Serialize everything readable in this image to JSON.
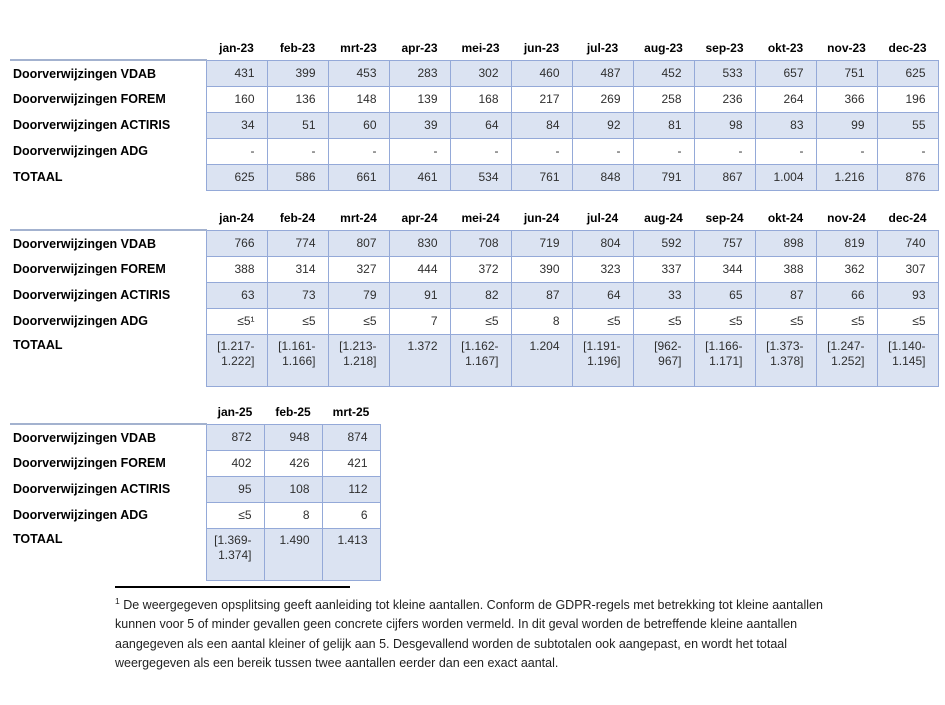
{
  "colors": {
    "cell_border": "#94a9d8",
    "shaded_row_fill": "#dbe3f2",
    "label_top_rule": "#a3b2cf",
    "footnote_rule": "#000000"
  },
  "tables": [
    {
      "name": "doorverwijzingen-2023",
      "label_col_width": 196,
      "data_col_width": 61,
      "columns": [
        "jan-23",
        "feb-23",
        "mrt-23",
        "apr-23",
        "mei-23",
        "jun-23",
        "jul-23",
        "aug-23",
        "sep-23",
        "okt-23",
        "nov-23",
        "dec-23"
      ],
      "rows": [
        {
          "label": "Doorverwijzingen VDAB",
          "shaded": true,
          "values": [
            "431",
            "399",
            "453",
            "283",
            "302",
            "460",
            "487",
            "452",
            "533",
            "657",
            "751",
            "625"
          ]
        },
        {
          "label": "Doorverwijzingen FOREM",
          "shaded": false,
          "values": [
            "160",
            "136",
            "148",
            "139",
            "168",
            "217",
            "269",
            "258",
            "236",
            "264",
            "366",
            "196"
          ]
        },
        {
          "label": "Doorverwijzingen ACTIRIS",
          "shaded": true,
          "values": [
            "34",
            "51",
            "60",
            "39",
            "64",
            "84",
            "92",
            "81",
            "98",
            "83",
            "99",
            "55"
          ]
        },
        {
          "label": "Doorverwijzingen ADG",
          "shaded": false,
          "values": [
            "-",
            "-",
            "-",
            "-",
            "-",
            "-",
            "-",
            "-",
            "-",
            "-",
            "-",
            "-"
          ]
        },
        {
          "label": "TOTAAL",
          "shaded": true,
          "values": [
            "625",
            "586",
            "661",
            "461",
            "534",
            "761",
            "848",
            "791",
            "867",
            "1.004",
            "1.216",
            "876"
          ]
        }
      ]
    },
    {
      "name": "doorverwijzingen-2024",
      "label_col_width": 196,
      "data_col_width": 61,
      "columns": [
        "jan-24",
        "feb-24",
        "mrt-24",
        "apr-24",
        "mei-24",
        "jun-24",
        "jul-24",
        "aug-24",
        "sep-24",
        "okt-24",
        "nov-24",
        "dec-24"
      ],
      "rows": [
        {
          "label": "Doorverwijzingen VDAB",
          "shaded": true,
          "values": [
            "766",
            "774",
            "807",
            "830",
            "708",
            "719",
            "804",
            "592",
            "757",
            "898",
            "819",
            "740"
          ]
        },
        {
          "label": "Doorverwijzingen FOREM",
          "shaded": false,
          "values": [
            "388",
            "314",
            "327",
            "444",
            "372",
            "390",
            "323",
            "337",
            "344",
            "388",
            "362",
            "307"
          ]
        },
        {
          "label": "Doorverwijzingen ACTIRIS",
          "shaded": true,
          "values": [
            "63",
            "73",
            "79",
            "91",
            "82",
            "87",
            "64",
            "33",
            "65",
            "87",
            "66",
            "93"
          ]
        },
        {
          "label": "Doorverwijzingen ADG",
          "shaded": false,
          "values": [
            "≤5¹",
            "≤5",
            "≤5",
            "7",
            "≤5",
            "8",
            "≤5",
            "≤5",
            "≤5",
            "≤5",
            "≤5",
            "≤5"
          ]
        },
        {
          "label": "TOTAAL",
          "shaded": true,
          "values": [
            "[1.217-\n1.222]",
            "[1.161-\n1.166]",
            "[1.213-\n1.218]",
            "1.372",
            "[1.162-\n1.167]",
            "1.204",
            "[1.191-\n1.196]",
            "[962-\n967]",
            "[1.166-\n1.171]",
            "[1.373-\n1.378]",
            "[1.247-\n1.252]",
            "[1.140-\n1.145]"
          ]
        }
      ]
    },
    {
      "name": "doorverwijzingen-2025",
      "label_col_width": 196,
      "data_col_width": 58,
      "columns": [
        "jan-25",
        "feb-25",
        "mrt-25"
      ],
      "rows": [
        {
          "label": "Doorverwijzingen VDAB",
          "shaded": true,
          "values": [
            "872",
            "948",
            "874"
          ]
        },
        {
          "label": "Doorverwijzingen FOREM",
          "shaded": false,
          "values": [
            "402",
            "426",
            "421"
          ]
        },
        {
          "label": "Doorverwijzingen ACTIRIS",
          "shaded": true,
          "values": [
            "95",
            "108",
            "112"
          ]
        },
        {
          "label": "Doorverwijzingen ADG",
          "shaded": false,
          "values": [
            "≤5",
            "8",
            "6"
          ]
        },
        {
          "label": "TOTAAL",
          "shaded": true,
          "values": [
            "[1.369-\n1.374]",
            "1.490",
            "1.413"
          ]
        }
      ]
    }
  ],
  "footnote": {
    "marker": "1",
    "text": "De weergegeven opsplitsing geeft aanleiding tot kleine aantallen. Conform de GDPR-regels met betrekking tot kleine aantallen kunnen voor 5 of minder gevallen geen concrete cijfers worden vermeld. In dit geval worden de betreffende kleine aantallen aangegeven als een aantal kleiner of gelijk aan 5. Desgevallend worden de subtotalen ook aangepast, en wordt het totaal weergegeven als een bereik tussen twee aantallen eerder dan een exact aantal."
  }
}
